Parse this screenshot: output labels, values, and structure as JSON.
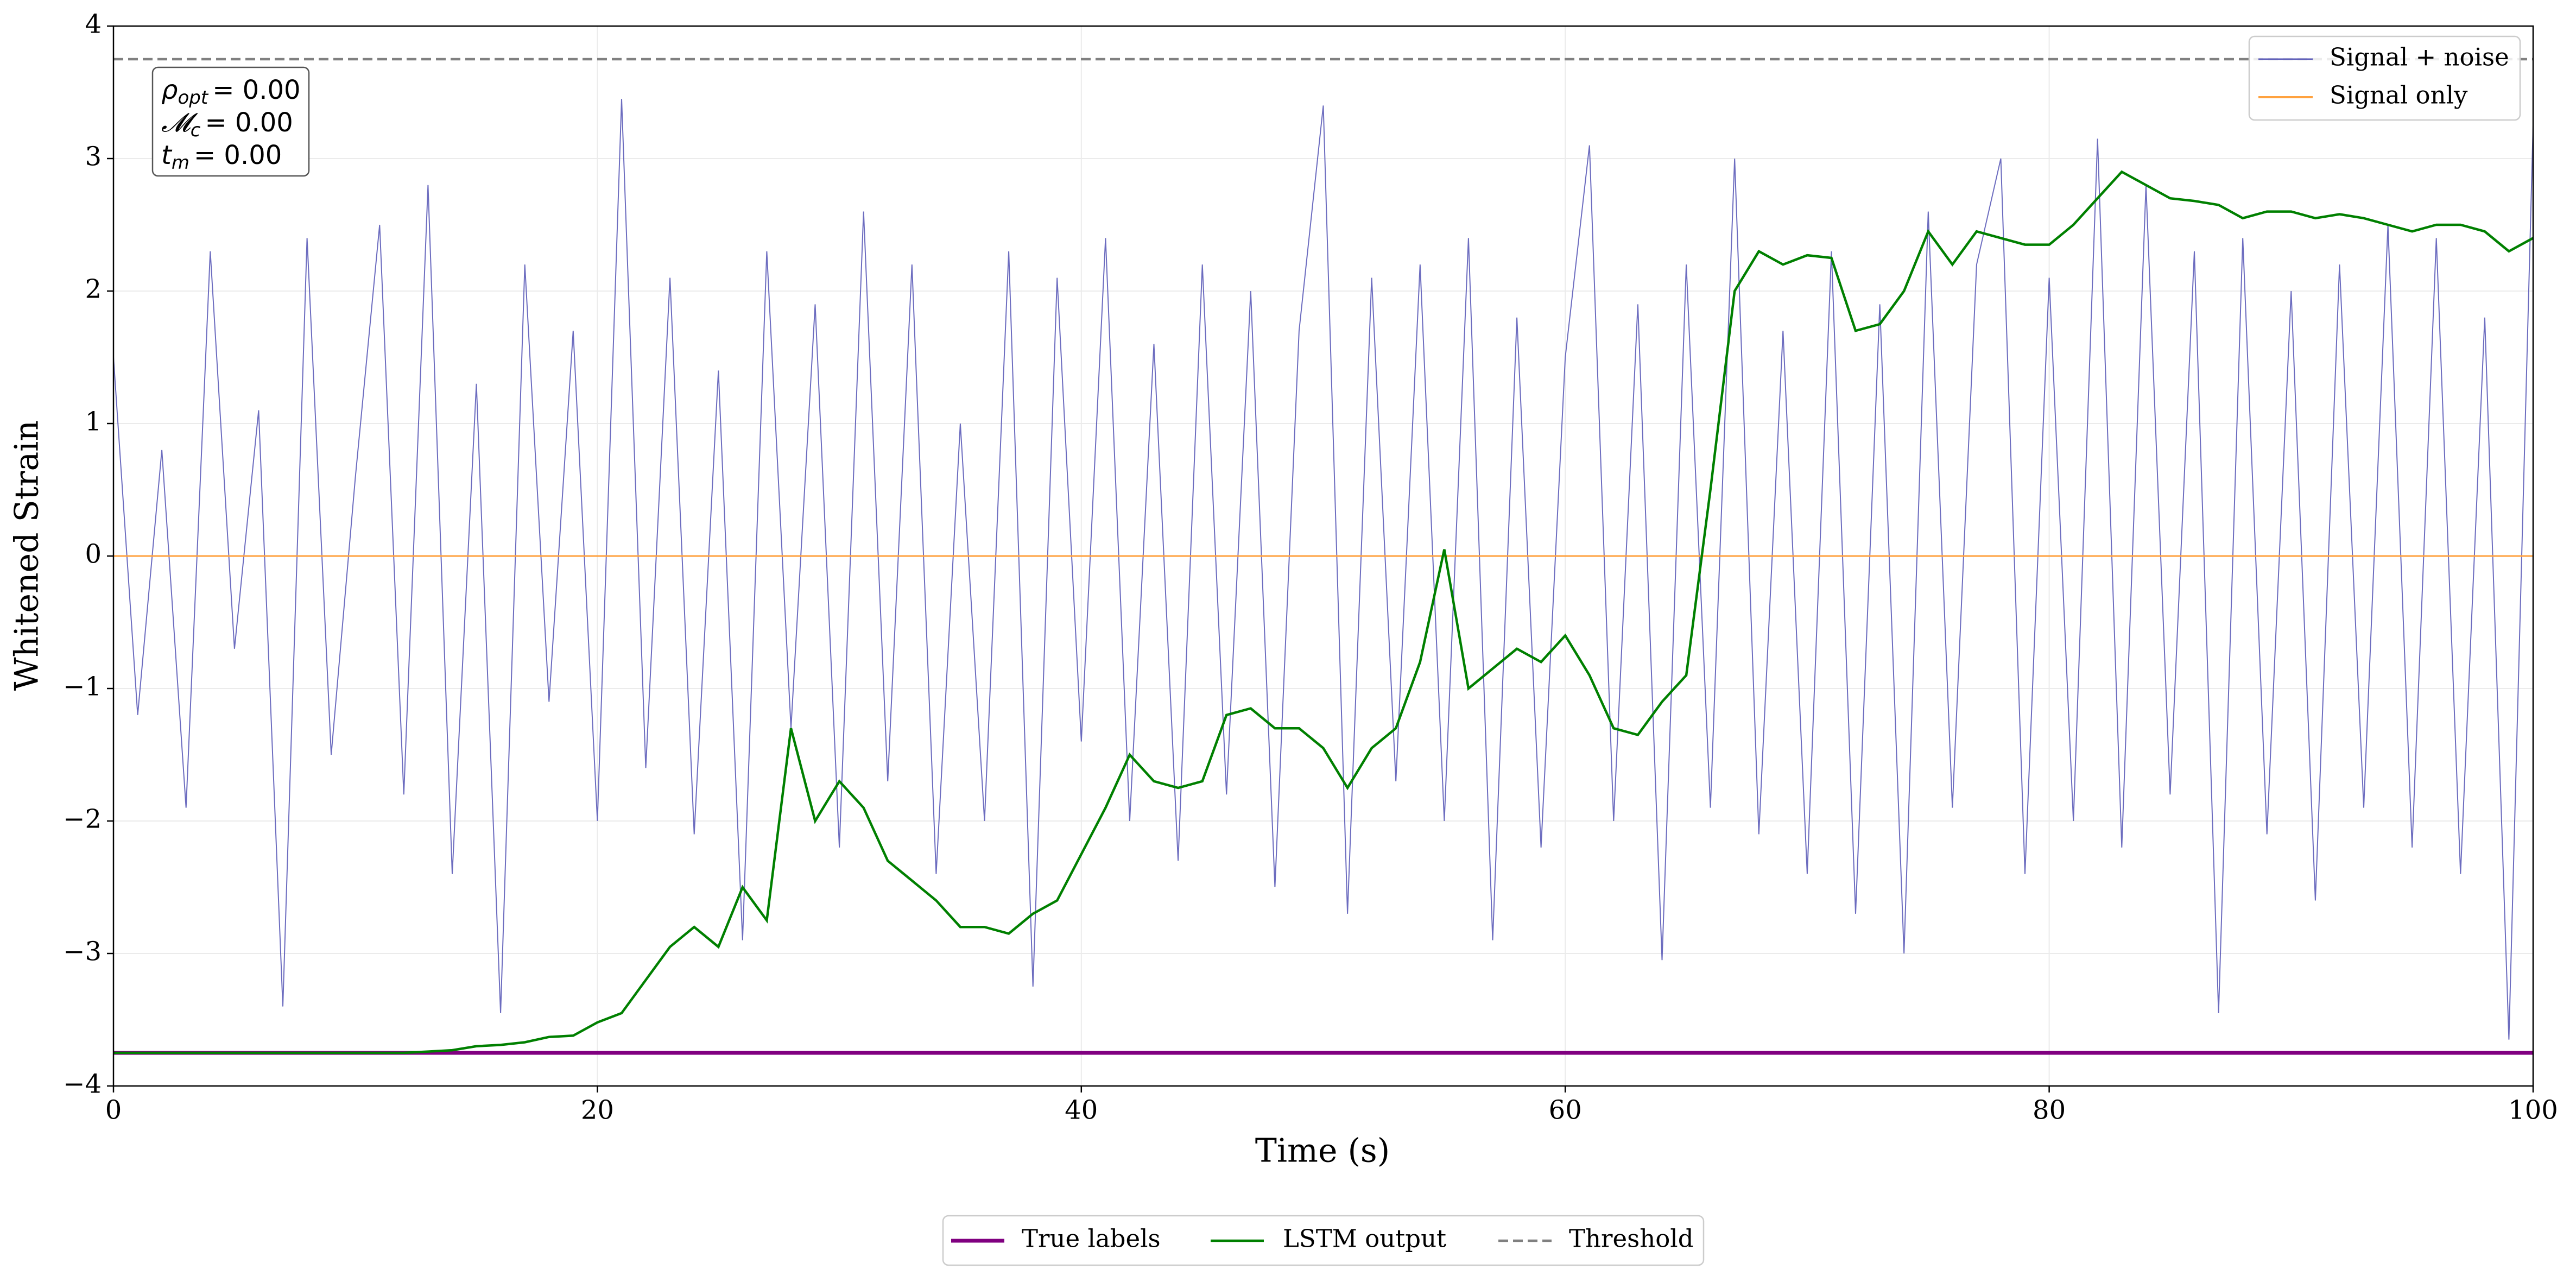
{
  "chart_data": {
    "type": "line",
    "xlabel": "Time (s)",
    "ylabel": "Whitened Strain",
    "xlim": [
      0,
      100
    ],
    "xticks": [
      0,
      20,
      40,
      60,
      80,
      100
    ],
    "ylim": [
      -4,
      4
    ],
    "yticks": [
      {
        "value": -4,
        "label": "−4"
      },
      {
        "value": -3,
        "label": "−3"
      },
      {
        "value": -2,
        "label": "−2"
      },
      {
        "value": -1,
        "label": "−1"
      },
      0,
      1,
      2,
      3,
      4
    ],
    "grid": true,
    "annotations": [
      {
        "base": "ρ",
        "sub": "opt",
        "text": "= 0.00"
      },
      {
        "base": "𝓜",
        "sub": "c",
        "text": "= 0.00"
      },
      {
        "base": "t",
        "sub": "m",
        "text": "= 0.00"
      }
    ],
    "series": [
      {
        "name": "Signal + noise",
        "color": "#5c5cb8",
        "legend": "upper right",
        "x": [
          0,
          1,
          2,
          3,
          4,
          5,
          6,
          7,
          8,
          9,
          10,
          11,
          12,
          13,
          14,
          15,
          16,
          17,
          18,
          19,
          20,
          21,
          22,
          23,
          24,
          25,
          26,
          27,
          28,
          29,
          30,
          31,
          32,
          33,
          34,
          35,
          36,
          37,
          38,
          39,
          40,
          41,
          42,
          43,
          44,
          45,
          46,
          47,
          48,
          49,
          50,
          51,
          52,
          53,
          54,
          55,
          56,
          57,
          58,
          59,
          60,
          61,
          62,
          63,
          64,
          65,
          66,
          67,
          68,
          69,
          70,
          71,
          72,
          73,
          74,
          75,
          76,
          77,
          78,
          79,
          80,
          81,
          82,
          83,
          84,
          85,
          86,
          87,
          88,
          89,
          90,
          91,
          92,
          93,
          94,
          95,
          96,
          97,
          98,
          99,
          100
        ],
        "values": [
          1.5,
          -1.2,
          0.8,
          -1.9,
          2.3,
          -0.7,
          1.1,
          -3.4,
          2.4,
          -1.5,
          0.6,
          2.5,
          -1.8,
          2.8,
          -2.4,
          1.3,
          -3.45,
          2.2,
          -1.1,
          1.7,
          -2.0,
          3.45,
          -1.6,
          2.1,
          -2.1,
          1.4,
          -2.9,
          2.3,
          -1.3,
          1.9,
          -2.2,
          2.6,
          -1.7,
          2.2,
          -2.4,
          1.0,
          -2.0,
          2.3,
          -3.25,
          2.1,
          -1.4,
          2.4,
          -2.0,
          1.6,
          -2.3,
          2.2,
          -1.8,
          2.0,
          -2.5,
          1.7,
          3.4,
          -2.7,
          2.1,
          -1.7,
          2.2,
          -2.0,
          2.4,
          -2.9,
          1.8,
          -2.2,
          1.5,
          3.1,
          -2.0,
          1.9,
          -3.05,
          2.2,
          -1.9,
          3.0,
          -2.1,
          1.7,
          -2.4,
          2.3,
          -2.7,
          1.9,
          -3.0,
          2.6,
          -1.9,
          2.2,
          3.0,
          -2.4,
          2.1,
          -2.0,
          3.15,
          -2.2,
          2.8,
          -1.8,
          2.3,
          -3.45,
          2.4,
          -2.1,
          2.0,
          -2.6,
          2.2,
          -1.9,
          2.5,
          -2.2,
          2.4,
          -2.4,
          1.8,
          -3.65,
          3.25
        ]
      },
      {
        "name": "Signal only",
        "color": "#ffa23f",
        "legend": "upper right",
        "x": [
          0,
          100
        ],
        "values": [
          0,
          0
        ]
      },
      {
        "name": "True labels",
        "color": "#800080",
        "legend": "lower center",
        "x": [
          0,
          100
        ],
        "values": [
          -3.75,
          -3.75
        ]
      },
      {
        "name": "LSTM output",
        "color": "#008000",
        "legend": "lower center",
        "x": [
          0,
          1,
          2,
          3,
          4,
          5,
          6,
          7,
          8,
          9,
          10,
          11,
          12,
          13,
          14,
          15,
          16,
          17,
          18,
          19,
          20,
          21,
          22,
          23,
          24,
          25,
          26,
          27,
          28,
          29,
          30,
          31,
          32,
          33,
          34,
          35,
          36,
          37,
          38,
          39,
          40,
          41,
          42,
          43,
          44,
          45,
          46,
          47,
          48,
          49,
          50,
          51,
          52,
          53,
          54,
          55,
          56,
          57,
          58,
          59,
          60,
          61,
          62,
          63,
          64,
          65,
          66,
          67,
          68,
          69,
          70,
          71,
          72,
          73,
          74,
          75,
          76,
          77,
          78,
          79,
          80,
          81,
          82,
          83,
          84,
          85,
          86,
          87,
          88,
          89,
          90,
          91,
          92,
          93,
          94,
          95,
          96,
          97,
          98,
          99,
          100
        ],
        "values": [
          -3.75,
          -3.75,
          -3.75,
          -3.75,
          -3.75,
          -3.75,
          -3.75,
          -3.75,
          -3.75,
          -3.75,
          -3.75,
          -3.75,
          -3.75,
          -3.74,
          -3.73,
          -3.7,
          -3.69,
          -3.67,
          -3.63,
          -3.62,
          -3.52,
          -3.45,
          -3.2,
          -2.95,
          -2.8,
          -2.95,
          -2.5,
          -2.75,
          -1.3,
          -2.0,
          -1.7,
          -1.9,
          -2.3,
          -2.45,
          -2.6,
          -2.8,
          -2.8,
          -2.85,
          -2.7,
          -2.6,
          -2.25,
          -1.9,
          -1.5,
          -1.7,
          -1.75,
          -1.7,
          -1.2,
          -1.15,
          -1.3,
          -1.3,
          -1.45,
          -1.75,
          -1.45,
          -1.3,
          -0.8,
          0.05,
          -1.0,
          -0.85,
          -0.7,
          -0.8,
          -0.6,
          -0.9,
          -1.3,
          -1.35,
          -1.1,
          -0.9,
          0.5,
          2.0,
          2.3,
          2.2,
          2.27,
          2.25,
          1.7,
          1.75,
          2.0,
          2.45,
          2.2,
          2.45,
          2.4,
          2.35,
          2.35,
          2.5,
          2.7,
          2.9,
          2.8,
          2.7,
          2.68,
          2.65,
          2.55,
          2.6,
          2.6,
          2.55,
          2.58,
          2.55,
          2.5,
          2.45,
          2.5,
          2.5,
          2.45,
          2.3,
          2.4
        ]
      },
      {
        "name": "Threshold",
        "color": "#808080",
        "legend": "lower center",
        "linestyle": "dashed",
        "x": [
          0,
          100
        ],
        "values": [
          3.75,
          3.75
        ]
      }
    ]
  }
}
